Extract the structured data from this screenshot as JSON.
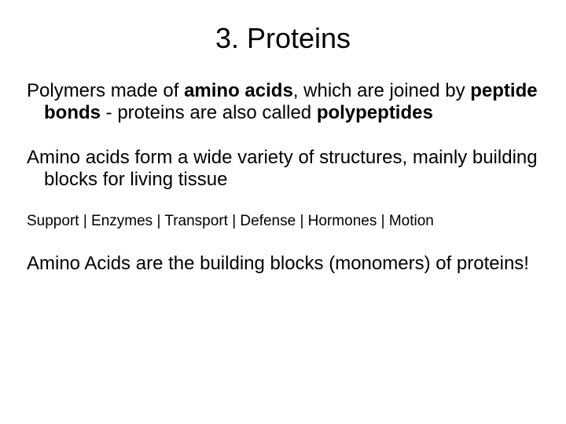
{
  "type": "slide",
  "background_color": "#ffffff",
  "text_color": "#000000",
  "font_family": "Arial",
  "title": {
    "text": "3. Proteins",
    "fontsize": 36,
    "align": "center"
  },
  "para1": {
    "fontsize": 24,
    "runs": {
      "t1": "Polymers made of ",
      "b1": "amino acids",
      "t2": ", which are joined by ",
      "b2": "peptide bonds",
      "t3": "  - proteins are also called ",
      "b3": "polypeptides"
    }
  },
  "para2": {
    "fontsize": 24,
    "text": "Amino acids form a wide variety of structures, mainly building blocks for living tissue"
  },
  "functions_line": {
    "fontsize": 19,
    "text": "Support |  Enzymes | Transport | Defense | Hormones | Motion"
  },
  "para3": {
    "fontsize": 24,
    "text": "Amino Acids are the building blocks (monomers) of proteins!"
  }
}
